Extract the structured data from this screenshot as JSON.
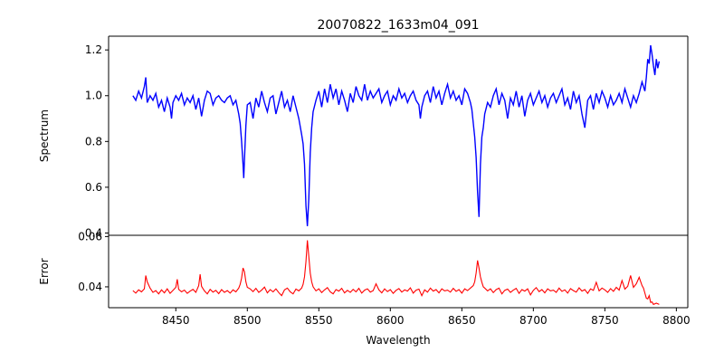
{
  "chart_data": [
    {
      "type": "line",
      "title": "20070822_1633m04_091",
      "xlabel": "",
      "ylabel": "Spectrum",
      "xlim": [
        8403,
        8808
      ],
      "ylim": [
        0.39,
        1.26
      ],
      "yticks": [
        0.4,
        0.6,
        0.8,
        1.0,
        1.2
      ],
      "ytick_labels": [
        "0.4",
        "0.6",
        "0.8",
        "1.0",
        "1.2"
      ],
      "grid": false,
      "color": "#0000ff",
      "x": [
        8420,
        8422,
        8424,
        8426,
        8428,
        8429,
        8430,
        8432,
        8434,
        8436,
        8438,
        8440,
        8442,
        8444,
        8446,
        8447,
        8448,
        8450,
        8452,
        8454,
        8456,
        8458,
        8460,
        8462,
        8464,
        8466,
        8468,
        8470,
        8472,
        8474,
        8476,
        8478,
        8480,
        8482,
        8484,
        8486,
        8488,
        8490,
        8492,
        8494,
        8495,
        8496,
        8497,
        8497.5,
        8498,
        8499,
        8500,
        8502,
        8504,
        8506,
        8508,
        8510,
        8512,
        8514,
        8516,
        8518,
        8520,
        8522,
        8524,
        8526,
        8528,
        8530,
        8532,
        8534,
        8536,
        8538,
        8539,
        8540,
        8541,
        8542,
        8543,
        8544,
        8545,
        8546,
        8548,
        8550,
        8552,
        8554,
        8556,
        8558,
        8560,
        8562,
        8564,
        8566,
        8568,
        8570,
        8572,
        8574,
        8576,
        8578,
        8580,
        8582,
        8584,
        8586,
        8588,
        8590,
        8592,
        8594,
        8596,
        8598,
        8600,
        8602,
        8604,
        8606,
        8608,
        8610,
        8612,
        8614,
        8616,
        8618,
        8620,
        8621,
        8622,
        8624,
        8626,
        8628,
        8630,
        8632,
        8634,
        8636,
        8638,
        8640,
        8642,
        8644,
        8646,
        8648,
        8650,
        8652,
        8654,
        8656,
        8657,
        8658,
        8659,
        8660,
        8661,
        8662,
        8663,
        8664,
        8665,
        8666,
        8668,
        8670,
        8672,
        8674,
        8676,
        8678,
        8680,
        8682,
        8684,
        8686,
        8688,
        8690,
        8692,
        8694,
        8696,
        8698,
        8700,
        8702,
        8704,
        8706,
        8708,
        8710,
        8712,
        8714,
        8716,
        8718,
        8720,
        8722,
        8724,
        8726,
        8728,
        8730,
        8732,
        8734,
        8736,
        8738,
        8740,
        8742,
        8744,
        8746,
        8748,
        8750,
        8752,
        8754,
        8756,
        8758,
        8760,
        8762,
        8764,
        8766,
        8768,
        8770,
        8772,
        8774,
        8776,
        8778,
        8779,
        8780,
        8781,
        8782,
        8783,
        8784,
        8785,
        8786,
        8787,
        8788
      ],
      "y": [
        1.0,
        0.98,
        1.02,
        0.99,
        1.04,
        1.08,
        0.97,
        1.0,
        0.98,
        1.01,
        0.95,
        0.98,
        0.93,
        0.99,
        0.95,
        0.9,
        0.97,
        1.0,
        0.98,
        1.01,
        0.96,
        0.99,
        0.97,
        1.0,
        0.94,
        0.99,
        0.91,
        0.98,
        1.02,
        1.01,
        0.96,
        0.99,
        1.0,
        0.98,
        0.97,
        0.99,
        1.0,
        0.96,
        0.98,
        0.92,
        0.88,
        0.8,
        0.7,
        0.64,
        0.72,
        0.87,
        0.96,
        0.97,
        0.9,
        0.99,
        0.95,
        1.02,
        0.97,
        0.93,
        0.99,
        1.0,
        0.92,
        0.97,
        1.02,
        0.95,
        0.98,
        0.93,
        1.0,
        0.95,
        0.9,
        0.83,
        0.79,
        0.7,
        0.52,
        0.43,
        0.55,
        0.75,
        0.86,
        0.93,
        0.98,
        1.02,
        0.95,
        1.03,
        0.97,
        1.05,
        0.99,
        1.03,
        0.96,
        1.02,
        0.98,
        0.93,
        1.01,
        0.97,
        1.04,
        1.0,
        0.98,
        1.05,
        0.98,
        1.02,
        0.99,
        1.01,
        1.03,
        0.97,
        1.0,
        1.02,
        0.96,
        1.0,
        0.98,
        1.03,
        0.99,
        1.01,
        0.97,
        1.0,
        1.02,
        0.98,
        0.96,
        0.9,
        0.95,
        1.0,
        1.02,
        0.97,
        1.04,
        0.99,
        1.02,
        0.96,
        1.01,
        1.05,
        0.99,
        1.02,
        0.98,
        1.0,
        0.96,
        1.03,
        1.01,
        0.97,
        0.94,
        0.88,
        0.82,
        0.73,
        0.58,
        0.47,
        0.7,
        0.82,
        0.86,
        0.92,
        0.97,
        0.95,
        1.0,
        1.03,
        0.96,
        1.01,
        0.98,
        0.9,
        0.99,
        0.96,
        1.02,
        0.95,
        1.0,
        0.91,
        0.98,
        1.01,
        0.96,
        0.99,
        1.02,
        0.97,
        1.0,
        0.95,
        0.99,
        1.01,
        0.97,
        1.0,
        1.03,
        0.96,
        0.99,
        0.94,
        1.02,
        0.97,
        1.0,
        0.92,
        0.86,
        0.98,
        1.0,
        0.94,
        1.01,
        0.97,
        1.02,
        0.99,
        0.95,
        1.0,
        0.96,
        0.98,
        1.01,
        0.97,
        1.03,
        0.99,
        0.95,
        1.0,
        0.97,
        1.01,
        1.06,
        1.02,
        1.08,
        1.16,
        1.14,
        1.22,
        1.18,
        1.13,
        1.09,
        1.16,
        1.12,
        1.15
      ]
    },
    {
      "type": "line",
      "title": "",
      "xlabel": "Wavelength",
      "ylabel": "Error",
      "xlim": [
        8403,
        8808
      ],
      "ylim": [
        0.0317,
        0.0605
      ],
      "xticks": [
        8450,
        8500,
        8550,
        8600,
        8650,
        8700,
        8750,
        8800
      ],
      "xtick_labels": [
        "8450",
        "8500",
        "8550",
        "8600",
        "8650",
        "8700",
        "8750",
        "8800"
      ],
      "yticks": [
        0.04,
        0.06
      ],
      "ytick_labels": [
        "0.04",
        "0.06"
      ],
      "grid": false,
      "color": "#ff0000",
      "x": [
        8420,
        8422,
        8424,
        8426,
        8428,
        8429,
        8430,
        8432,
        8434,
        8436,
        8438,
        8440,
        8442,
        8444,
        8446,
        8448,
        8450,
        8451,
        8452,
        8454,
        8456,
        8458,
        8460,
        8462,
        8464,
        8466,
        8467,
        8468,
        8470,
        8472,
        8474,
        8476,
        8478,
        8480,
        8482,
        8484,
        8486,
        8488,
        8490,
        8492,
        8494,
        8495,
        8496,
        8497,
        8498,
        8499,
        8500,
        8502,
        8504,
        8506,
        8508,
        8510,
        8512,
        8514,
        8516,
        8518,
        8520,
        8522,
        8524,
        8526,
        8528,
        8530,
        8532,
        8534,
        8536,
        8538,
        8539,
        8540,
        8541,
        8542,
        8543,
        8544,
        8545,
        8546,
        8548,
        8550,
        8552,
        8554,
        8556,
        8558,
        8560,
        8562,
        8564,
        8566,
        8568,
        8570,
        8572,
        8574,
        8576,
        8578,
        8580,
        8582,
        8584,
        8586,
        8588,
        8590,
        8592,
        8594,
        8596,
        8598,
        8600,
        8602,
        8604,
        8606,
        8608,
        8610,
        8612,
        8614,
        8616,
        8618,
        8620,
        8622,
        8624,
        8626,
        8628,
        8630,
        8632,
        8634,
        8636,
        8638,
        8640,
        8642,
        8644,
        8646,
        8648,
        8650,
        8652,
        8654,
        8656,
        8658,
        8659,
        8660,
        8661,
        8662,
        8663,
        8664,
        8665,
        8666,
        8668,
        8670,
        8672,
        8674,
        8676,
        8678,
        8680,
        8682,
        8684,
        8686,
        8688,
        8690,
        8692,
        8694,
        8696,
        8698,
        8700,
        8702,
        8704,
        8706,
        8708,
        8710,
        8712,
        8714,
        8716,
        8718,
        8720,
        8722,
        8724,
        8726,
        8728,
        8730,
        8732,
        8734,
        8736,
        8738,
        8740,
        8742,
        8744,
        8746,
        8748,
        8750,
        8752,
        8754,
        8756,
        8758,
        8760,
        8762,
        8764,
        8766,
        8768,
        8770,
        8772,
        8774,
        8776,
        8777,
        8778,
        8779,
        8780,
        8781,
        8782,
        8783,
        8784,
        8786,
        8788
      ],
      "y": [
        0.0385,
        0.0375,
        0.0388,
        0.038,
        0.0392,
        0.0445,
        0.042,
        0.0395,
        0.0378,
        0.0385,
        0.0372,
        0.0388,
        0.0376,
        0.0392,
        0.0374,
        0.0386,
        0.0398,
        0.043,
        0.039,
        0.038,
        0.0387,
        0.0374,
        0.0383,
        0.039,
        0.0378,
        0.0405,
        0.045,
        0.0402,
        0.0384,
        0.0372,
        0.039,
        0.0379,
        0.0386,
        0.0373,
        0.0389,
        0.0378,
        0.0385,
        0.0375,
        0.0388,
        0.038,
        0.0395,
        0.041,
        0.0435,
        0.0475,
        0.046,
        0.042,
        0.0398,
        0.0392,
        0.0381,
        0.0394,
        0.0378,
        0.0387,
        0.0399,
        0.0376,
        0.0389,
        0.038,
        0.0392,
        0.0377,
        0.0365,
        0.0388,
        0.0395,
        0.038,
        0.0372,
        0.0391,
        0.0384,
        0.0395,
        0.041,
        0.044,
        0.05,
        0.0585,
        0.052,
        0.0455,
        0.042,
        0.04,
        0.0384,
        0.0392,
        0.0377,
        0.0388,
        0.0397,
        0.038,
        0.0372,
        0.0389,
        0.0383,
        0.0394,
        0.0376,
        0.0386,
        0.0378,
        0.039,
        0.038,
        0.0394,
        0.0375,
        0.0387,
        0.0392,
        0.0379,
        0.0385,
        0.0412,
        0.0388,
        0.0376,
        0.0392,
        0.0381,
        0.0389,
        0.0374,
        0.0386,
        0.0393,
        0.0379,
        0.0388,
        0.0383,
        0.0396,
        0.0375,
        0.0387,
        0.0391,
        0.0365,
        0.0388,
        0.0379,
        0.0395,
        0.0383,
        0.0389,
        0.0376,
        0.0392,
        0.0384,
        0.0387,
        0.0379,
        0.0394,
        0.0382,
        0.0389,
        0.0375,
        0.0392,
        0.0385,
        0.0395,
        0.0405,
        0.042,
        0.0455,
        0.0505,
        0.0475,
        0.044,
        0.0418,
        0.04,
        0.0395,
        0.0384,
        0.0392,
        0.0377,
        0.0389,
        0.0395,
        0.0372,
        0.0386,
        0.0391,
        0.0378,
        0.0387,
        0.0394,
        0.0374,
        0.0389,
        0.0383,
        0.0392,
        0.0368,
        0.0386,
        0.0397,
        0.0381,
        0.0389,
        0.0376,
        0.0392,
        0.0384,
        0.0387,
        0.0378,
        0.0395,
        0.0382,
        0.0388,
        0.0375,
        0.0393,
        0.0385,
        0.0379,
        0.0396,
        0.0383,
        0.0389,
        0.0374,
        0.0392,
        0.0386,
        0.0418,
        0.0384,
        0.0395,
        0.0388,
        0.0378,
        0.0393,
        0.0382,
        0.0398,
        0.0387,
        0.0425,
        0.0391,
        0.0402,
        0.0445,
        0.0398,
        0.0412,
        0.0438,
        0.0405,
        0.0395,
        0.0375,
        0.0355,
        0.0352,
        0.0365,
        0.0338,
        0.034,
        0.033,
        0.0335,
        0.033
      ]
    }
  ]
}
